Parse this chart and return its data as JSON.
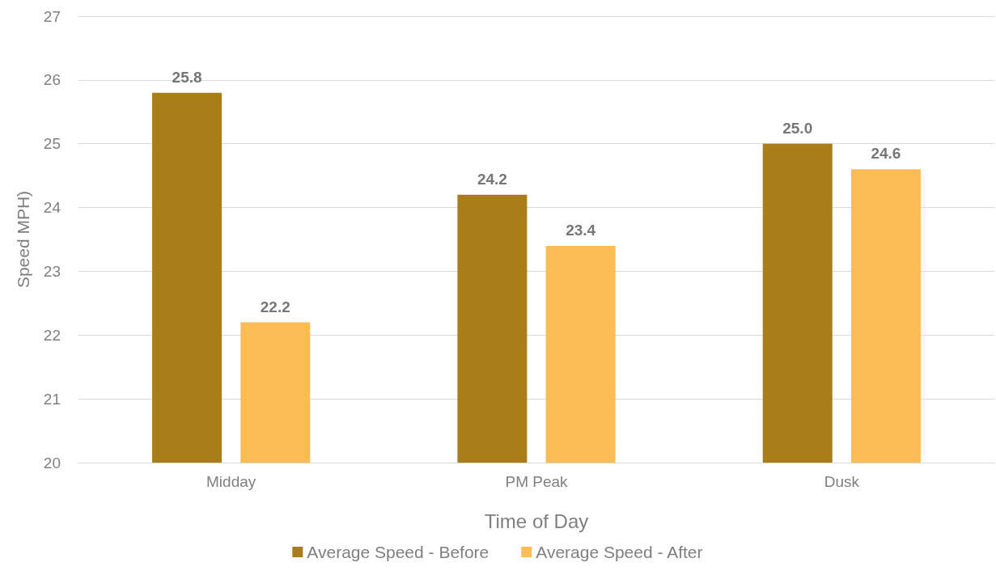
{
  "chart_data": {
    "type": "bar",
    "xlabel": "Time of Day",
    "ylabel": "Speed MPH)",
    "categories": [
      "Midday",
      "PM Peak",
      "Dusk"
    ],
    "series": [
      {
        "name": "Average Speed - Before",
        "color": "#a87d1a",
        "values": [
          25.8,
          24.2,
          25.0
        ],
        "value_labels": [
          "25.8",
          "24.2",
          "25.0"
        ]
      },
      {
        "name": "Average Speed - After",
        "color": "#fbbc55",
        "values": [
          22.2,
          23.4,
          24.6
        ],
        "value_labels": [
          "22.2",
          "23.4",
          "24.6"
        ]
      }
    ],
    "ylim": [
      20,
      27
    ],
    "yticks": [
      20,
      21,
      22,
      23,
      24,
      25,
      26,
      27
    ],
    "grid": "y",
    "legend": "bottom"
  }
}
